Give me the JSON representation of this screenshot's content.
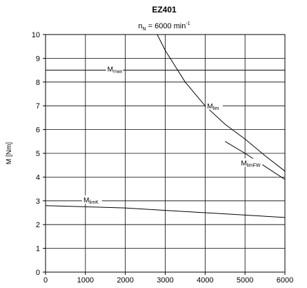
{
  "chart_data": {
    "type": "line",
    "title": "EZ401",
    "subtitle": {
      "prefix": "n",
      "sub": "N",
      "text": " = 6000 min",
      "sup": "-1"
    },
    "ylabel": "M [Nm]",
    "xlabel": "",
    "xlim": [
      0,
      6000
    ],
    "ylim": [
      0,
      10
    ],
    "xticks": [
      "0",
      "1000",
      "2000",
      "3000",
      "4000",
      "5000",
      "6000"
    ],
    "yticks": [
      "0",
      "1",
      "2",
      "3",
      "4",
      "5",
      "6",
      "7",
      "8",
      "9",
      "10"
    ],
    "grid": true,
    "series": [
      {
        "name": "M_max",
        "label": {
          "main": "M",
          "sub": "max",
          "at": [
            1550,
            8.5
          ]
        },
        "x": [
          0,
          6000
        ],
        "y": [
          8.5,
          8.5
        ]
      },
      {
        "name": "M_lim",
        "label": {
          "main": "M",
          "sub": "lim",
          "at": [
            4050,
            6.95
          ]
        },
        "x": [
          2800,
          3000,
          3500,
          4000,
          4500,
          5000,
          5500,
          6000
        ],
        "y": [
          10.0,
          9.33,
          8.0,
          7.0,
          6.22,
          5.6,
          4.9,
          4.25
        ]
      },
      {
        "name": "M_limFW",
        "label": {
          "main": "M",
          "sub": "limFW",
          "at": [
            4900,
            4.55
          ]
        },
        "x": [
          4500,
          5000,
          5500,
          6000
        ],
        "y": [
          5.5,
          5.0,
          4.45,
          3.9
        ]
      },
      {
        "name": "M_limK",
        "label": {
          "main": "M",
          "sub": "limK",
          "at": [
            950,
            3.0
          ]
        },
        "x": [
          0,
          1000,
          2000,
          3000,
          4000,
          5000,
          6000
        ],
        "y": [
          2.8,
          2.75,
          2.7,
          2.6,
          2.5,
          2.4,
          2.3
        ]
      }
    ]
  }
}
